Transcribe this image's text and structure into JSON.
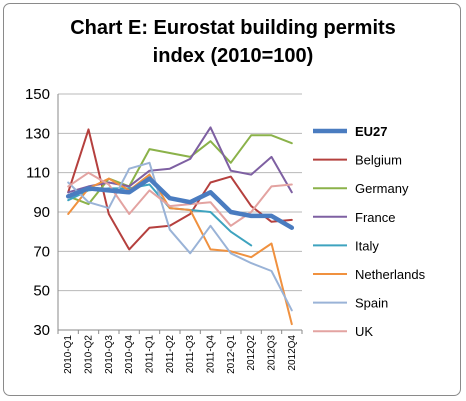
{
  "chart_data": {
    "type": "line",
    "title_line1": "Chart E: Eurostat building permits",
    "title_line2": "index (2010=100)",
    "xlabel": "",
    "ylabel": "",
    "categories": [
      "2010-Q1",
      "2010-Q2",
      "2010-Q3",
      "2010-Q4",
      "2011-Q1",
      "2011-Q2",
      "2011-Q3",
      "2011-Q4",
      "2012-Q1",
      "2012Q2",
      "2012Q3",
      "2012Q4"
    ],
    "ylim": [
      30,
      150
    ],
    "yticks": [
      "30",
      "50",
      "70",
      "90",
      "110",
      "130",
      "150"
    ],
    "grid": "horizontal",
    "legend_position": "right",
    "series": [
      {
        "name": "EU27",
        "color": "#4a7cc0",
        "width": 4.5,
        "values": [
          98,
          102,
          101,
          100,
          107,
          97,
          95,
          100,
          90,
          88,
          88,
          82
        ]
      },
      {
        "name": "Belgium",
        "color": "#b5403e",
        "width": 2,
        "values": [
          100,
          132,
          89,
          71,
          82,
          83,
          89,
          105,
          108,
          93,
          85,
          86
        ]
      },
      {
        "name": "Germany",
        "color": "#8bb24a",
        "width": 2,
        "values": [
          98,
          94,
          107,
          103,
          122,
          120,
          118,
          126,
          115,
          129,
          129,
          125
        ]
      },
      {
        "name": "France",
        "color": "#7e60a2",
        "width": 2,
        "values": [
          100,
          103,
          105,
          103,
          111,
          112,
          117,
          133,
          111,
          109,
          118,
          100
        ]
      },
      {
        "name": "Italy",
        "color": "#3ea3bf",
        "width": 2,
        "values": [
          96,
          101,
          102,
          102,
          104,
          92,
          91,
          90,
          80,
          73,
          null,
          null
        ]
      },
      {
        "name": "Netherlands",
        "color": "#f0913f",
        "width": 2,
        "values": [
          89,
          102,
          107,
          101,
          109,
          92,
          91,
          71,
          70,
          67,
          74,
          33
        ]
      },
      {
        "name": "Spain",
        "color": "#9ab3d7",
        "width": 2,
        "values": [
          105,
          95,
          92,
          112,
          115,
          81,
          69,
          83,
          69,
          64,
          60,
          40
        ]
      },
      {
        "name": "UK",
        "color": "#e3a3a1",
        "width": 2,
        "values": [
          103,
          110,
          104,
          89,
          101,
          93,
          94,
          95,
          83,
          90,
          103,
          104
        ]
      }
    ]
  }
}
